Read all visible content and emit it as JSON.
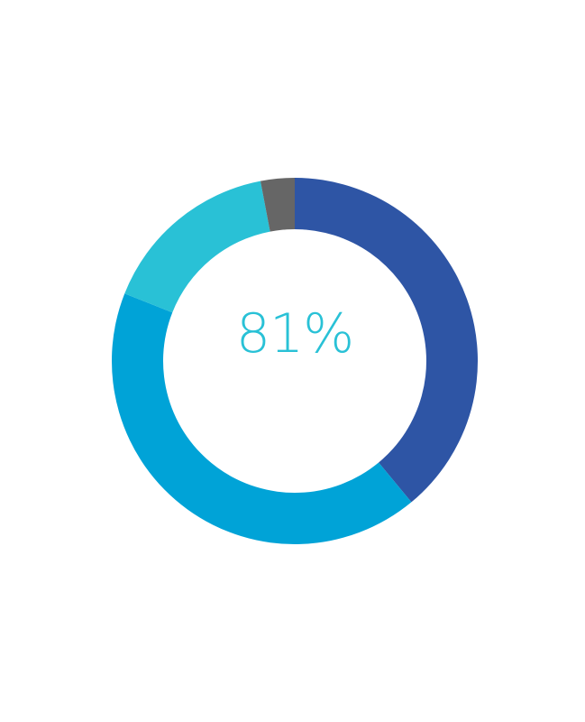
{
  "chart_data": {
    "type": "pie",
    "variant": "donut",
    "center_label": "81%",
    "slices": [
      {
        "value": 39,
        "color": "#2e55a5"
      },
      {
        "value": 42,
        "color": "#00a3d7"
      },
      {
        "value": 16,
        "color": "#29c1d6"
      },
      {
        "value": 3,
        "color": "#666666"
      }
    ],
    "start_angle_deg": 0,
    "direction": "clockwise",
    "label_color": "#29c1d6",
    "background": "#ffffff"
  }
}
